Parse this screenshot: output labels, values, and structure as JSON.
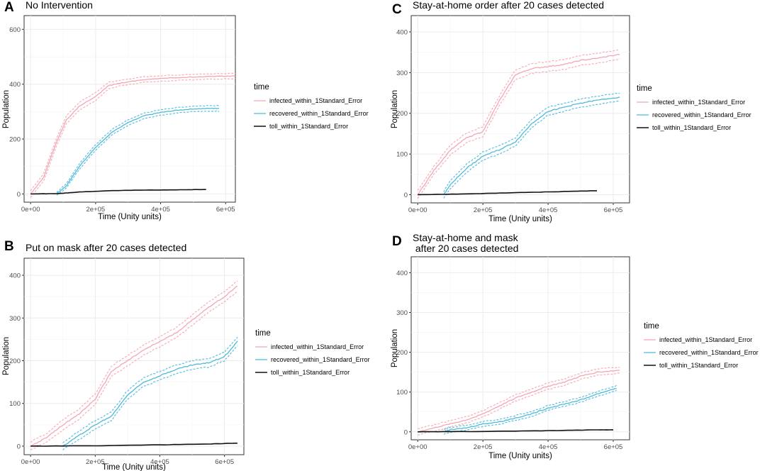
{
  "chart_data": [
    {
      "panel": "A",
      "type": "line",
      "title": "No Intervention",
      "xlabel": "Time (Unity units)",
      "ylabel": "Population",
      "xlim": [
        -20000,
        630000
      ],
      "ylim": [
        -30,
        650
      ],
      "x_ticks": [
        0,
        200000,
        400000,
        600000
      ],
      "x_tick_labels": [
        "0e+00",
        "2e+05",
        "4e+05",
        "6e+05"
      ],
      "y_ticks": [
        0,
        200,
        400,
        600
      ],
      "y_tick_labels": [
        "0",
        "200",
        "400",
        "600"
      ],
      "legend_title": "time",
      "series": [
        {
          "name": "infected_within_1Standard_Error",
          "color": "#f4a6b4",
          "x": [
            0,
            40000,
            80000,
            110000,
            150000,
            200000,
            240000,
            280000,
            350000,
            450000,
            550000,
            630000
          ],
          "values": [
            0,
            60,
            190,
            270,
            320,
            355,
            395,
            405,
            417,
            424,
            428,
            430
          ],
          "se": [
            12,
            14,
            14,
            14,
            14,
            14,
            12,
            10,
            10,
            10,
            10,
            10
          ]
        },
        {
          "name": "recovered_within_1Standard_Error",
          "color": "#4fb9d9",
          "x": [
            80000,
            110000,
            150000,
            200000,
            250000,
            300000,
            350000,
            400000,
            450000,
            500000,
            560000,
            580000
          ],
          "values": [
            0,
            30,
            100,
            170,
            225,
            260,
            285,
            297,
            305,
            310,
            312,
            312
          ],
          "se": [
            6,
            8,
            10,
            10,
            10,
            10,
            10,
            10,
            10,
            10,
            10,
            10
          ]
        },
        {
          "name": "toll_within_1Standard_Error",
          "color": "#111111",
          "x": [
            0,
            80000,
            150000,
            250000,
            350000,
            450000,
            540000
          ],
          "values": [
            0,
            1,
            7,
            12,
            14,
            15,
            16
          ],
          "se": [
            0,
            0,
            0,
            0,
            0,
            0,
            0
          ]
        }
      ]
    },
    {
      "panel": "B",
      "type": "line",
      "title": "Put on mask after 20 cases detected",
      "xlabel": "Time (Unity units)",
      "ylabel": "Population",
      "xlim": [
        -20000,
        660000
      ],
      "ylim": [
        -20,
        440
      ],
      "x_ticks": [
        0,
        200000,
        400000,
        600000
      ],
      "x_tick_labels": [
        "0e+00",
        "2e+05",
        "4e+05",
        "6e+05"
      ],
      "y_ticks": [
        0,
        100,
        200,
        300,
        400
      ],
      "y_tick_labels": [
        "0",
        "100",
        "200",
        "300",
        "400"
      ],
      "legend_title": "time",
      "series": [
        {
          "name": "infected_within_1Standard_Error",
          "color": "#f4a6b4",
          "x": [
            0,
            50000,
            100000,
            150000,
            200000,
            250000,
            300000,
            350000,
            400000,
            450000,
            500000,
            550000,
            600000,
            640000
          ],
          "values": [
            0,
            20,
            50,
            75,
            110,
            175,
            200,
            225,
            245,
            265,
            295,
            325,
            350,
            375
          ],
          "se": [
            10,
            10,
            12,
            12,
            12,
            12,
            12,
            12,
            12,
            12,
            12,
            12,
            12,
            12
          ]
        },
        {
          "name": "recovered_within_1Standard_Error",
          "color": "#4fb9d9",
          "x": [
            100000,
            150000,
            200000,
            250000,
            300000,
            350000,
            400000,
            450000,
            500000,
            550000,
            600000,
            640000
          ],
          "values": [
            0,
            25,
            50,
            70,
            120,
            150,
            165,
            180,
            190,
            195,
            210,
            245
          ],
          "se": [
            8,
            10,
            10,
            10,
            10,
            10,
            10,
            10,
            10,
            10,
            10,
            10
          ]
        },
        {
          "name": "toll_within_1Standard_Error",
          "color": "#111111",
          "x": [
            0,
            200000,
            400000,
            550000,
            640000
          ],
          "values": [
            0,
            1,
            3,
            5,
            7
          ],
          "se": [
            0,
            0,
            0,
            0,
            0
          ]
        }
      ]
    },
    {
      "panel": "C",
      "type": "line",
      "title": "Stay-at-home order after 20 cases detected",
      "xlabel": "Time (Unity units)",
      "ylabel": "Population",
      "xlim": [
        -20000,
        650000
      ],
      "ylim": [
        -20,
        440
      ],
      "x_ticks": [
        0,
        200000,
        400000,
        600000
      ],
      "x_tick_labels": [
        "0e+00",
        "2e+05",
        "4e+05",
        "6e+05"
      ],
      "y_ticks": [
        0,
        100,
        200,
        300,
        400
      ],
      "y_tick_labels": [
        "0",
        "100",
        "200",
        "300",
        "400"
      ],
      "legend_title": "time",
      "series": [
        {
          "name": "infected_within_1Standard_Error",
          "color": "#f4a6b4",
          "x": [
            0,
            50000,
            100000,
            150000,
            200000,
            250000,
            300000,
            350000,
            400000,
            450000,
            500000,
            550000,
            620000
          ],
          "values": [
            0,
            60,
            110,
            140,
            155,
            230,
            295,
            310,
            315,
            320,
            330,
            335,
            345
          ],
          "se": [
            10,
            10,
            12,
            12,
            12,
            12,
            12,
            12,
            12,
            12,
            12,
            12,
            12
          ]
        },
        {
          "name": "recovered_within_1Standard_Error",
          "color": "#4fb9d9",
          "x": [
            80000,
            100000,
            150000,
            200000,
            250000,
            300000,
            350000,
            400000,
            450000,
            500000,
            550000,
            620000
          ],
          "values": [
            0,
            25,
            65,
            95,
            110,
            130,
            175,
            205,
            215,
            225,
            232,
            240
          ],
          "se": [
            8,
            10,
            10,
            10,
            10,
            10,
            10,
            10,
            10,
            10,
            10,
            10
          ]
        },
        {
          "name": "toll_within_1Standard_Error",
          "color": "#111111",
          "x": [
            0,
            150000,
            300000,
            450000,
            550000
          ],
          "values": [
            0,
            2,
            5,
            8,
            10
          ],
          "se": [
            0,
            0,
            0,
            0,
            0
          ]
        }
      ]
    },
    {
      "panel": "D",
      "type": "line",
      "title": "Stay-at-home and mask\n after 20 cases detected",
      "xlabel": "Time (Unity units)",
      "ylabel": "Population",
      "xlim": [
        -20000,
        650000
      ],
      "ylim": [
        -20,
        440
      ],
      "x_ticks": [
        0,
        200000,
        400000,
        600000
      ],
      "x_tick_labels": [
        "0e+00",
        "2e+05",
        "4e+05",
        "6e+05"
      ],
      "y_ticks": [
        0,
        100,
        200,
        300,
        400
      ],
      "y_tick_labels": [
        "0",
        "100",
        "200",
        "300",
        "400"
      ],
      "legend_title": "time",
      "series": [
        {
          "name": "infected_within_1Standard_Error",
          "color": "#f4a6b4",
          "x": [
            0,
            50000,
            100000,
            150000,
            200000,
            250000,
            300000,
            350000,
            400000,
            450000,
            500000,
            550000,
            620000
          ],
          "values": [
            0,
            10,
            20,
            30,
            45,
            65,
            85,
            100,
            115,
            125,
            140,
            150,
            155
          ],
          "se": [
            8,
            8,
            8,
            8,
            8,
            8,
            8,
            8,
            8,
            8,
            8,
            8,
            8
          ]
        },
        {
          "name": "recovered_within_1Standard_Error",
          "color": "#4fb9d9",
          "x": [
            80000,
            100000,
            150000,
            200000,
            250000,
            300000,
            350000,
            400000,
            450000,
            500000,
            550000,
            610000
          ],
          "values": [
            0,
            5,
            10,
            20,
            25,
            35,
            45,
            60,
            70,
            80,
            95,
            110
          ],
          "se": [
            6,
            6,
            6,
            6,
            6,
            6,
            6,
            6,
            6,
            6,
            6,
            6
          ]
        },
        {
          "name": "toll_within_1Standard_Error",
          "color": "#111111",
          "x": [
            0,
            200000,
            400000,
            550000,
            600000
          ],
          "values": [
            0,
            1,
            3,
            5,
            5
          ],
          "se": [
            0,
            0,
            0,
            0,
            0
          ]
        }
      ]
    }
  ]
}
